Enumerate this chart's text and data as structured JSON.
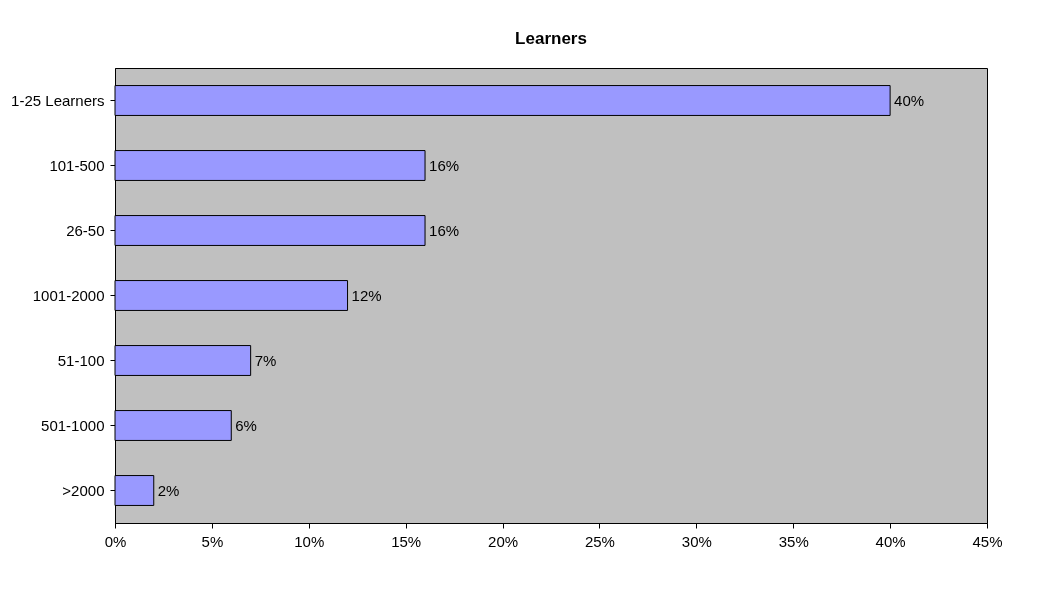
{
  "chart_data": {
    "type": "bar",
    "orientation": "horizontal",
    "title": "Learners",
    "categories": [
      "1-25 Learners",
      "101-500",
      "26-50",
      "1001-2000",
      "51-100",
      "501-1000",
      ">2000"
    ],
    "values": [
      40,
      16,
      16,
      12,
      7,
      6,
      2
    ],
    "value_labels": [
      "40%",
      "16%",
      "16%",
      "12%",
      "7%",
      "6%",
      "2%"
    ],
    "color": "#9999ff",
    "xlim": [
      0,
      45
    ],
    "xticks": [
      {
        "value": 0,
        "label": "0%"
      },
      {
        "value": 5,
        "label": "5%"
      },
      {
        "value": 10,
        "label": "10%"
      },
      {
        "value": 15,
        "label": "15%"
      },
      {
        "value": 20,
        "label": "20%"
      },
      {
        "value": 25,
        "label": "25%"
      },
      {
        "value": 30,
        "label": "30%"
      },
      {
        "value": 35,
        "label": "35%"
      },
      {
        "value": 40,
        "label": "40%"
      },
      {
        "value": 45,
        "label": "45%"
      }
    ],
    "grid": false
  }
}
